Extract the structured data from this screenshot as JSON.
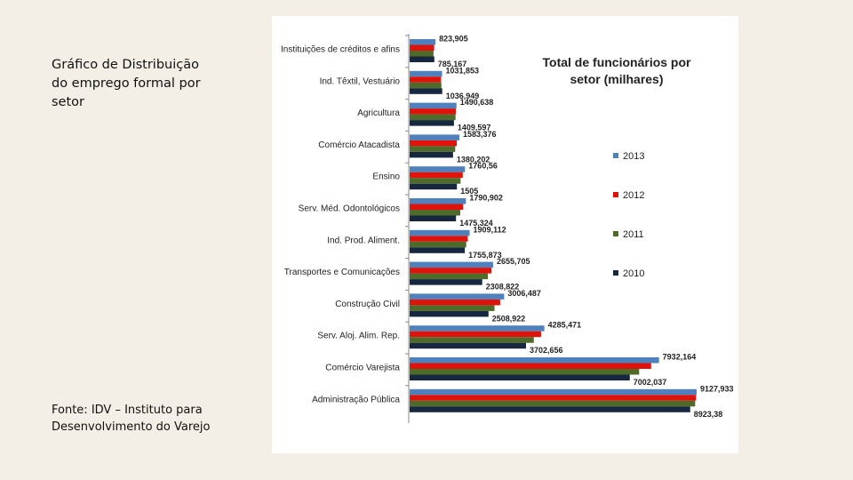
{
  "slide": {
    "caption": "Gráfico de Distribuição\ndo emprego formal por\nsetor",
    "source": "Fonte: IDV – Instituto para\nDesenvolvimento do Varejo"
  },
  "chart_data": {
    "type": "bar",
    "orientation": "horizontal",
    "title_lines": [
      "Total  de funcionários por",
      "setor  (milhares)"
    ],
    "categories": [
      "Instituições de créditos e afins",
      "Ind. Têxtil, Vestuário",
      "Agricultura",
      "Comércio Atacadista",
      "Ensino",
      "Serv. Méd. Odontológicos",
      "Ind. Prod. Aliment.",
      "Transportes e Comunicações",
      "Construção Civil",
      "Serv. Aloj. Alim. Rep.",
      "Comércio Varejista",
      "Administração Pública"
    ],
    "series": [
      {
        "name": "2013",
        "color": "#4f81bd",
        "values": [
          823.905,
          1031.853,
          1490.638,
          1583.376,
          1760.56,
          1790.902,
          1909.112,
          2655.705,
          3006.487,
          4285.471,
          7932.164,
          9127.933
        ]
      },
      {
        "name": "2012",
        "color": "#e0120c",
        "values": [
          780,
          1000,
          1470,
          1500,
          1690,
          1700,
          1850,
          2600,
          2880,
          4180,
          7680,
          9110
        ]
      },
      {
        "name": "2011",
        "color": "#4e6b2a",
        "values": [
          760,
          1010,
          1460,
          1450,
          1620,
          1610,
          1800,
          2490,
          2700,
          3950,
          7300,
          9080
        ]
      },
      {
        "name": "2010",
        "color": "#16273f",
        "values": [
          785.167,
          1036.949,
          1409.597,
          1380.202,
          1505,
          1475.324,
          1755.873,
          2308.822,
          2508.922,
          3702.656,
          7002.037,
          8923.38
        ]
      }
    ],
    "data_labels": {
      "top": [
        "823,905",
        "1031,853",
        "1490,638",
        "1583,376",
        "1760,56",
        "1790,902",
        "1909,112",
        "2655,705",
        "3006,487",
        "4285,471",
        "7932,164",
        "9127,933"
      ],
      "bottom": [
        "785,167",
        "1036,949",
        "1409,597",
        "1380,202",
        "1505",
        "1475,324",
        "1755,873",
        "2308,822",
        "2508,922",
        "3702,656",
        "7002,037",
        "8923,38"
      ]
    },
    "xlim": [
      0,
      9127.933
    ],
    "grid": false,
    "legend_position": "right",
    "legend_order": [
      "2013",
      "2012",
      "2011",
      "2010"
    ]
  }
}
